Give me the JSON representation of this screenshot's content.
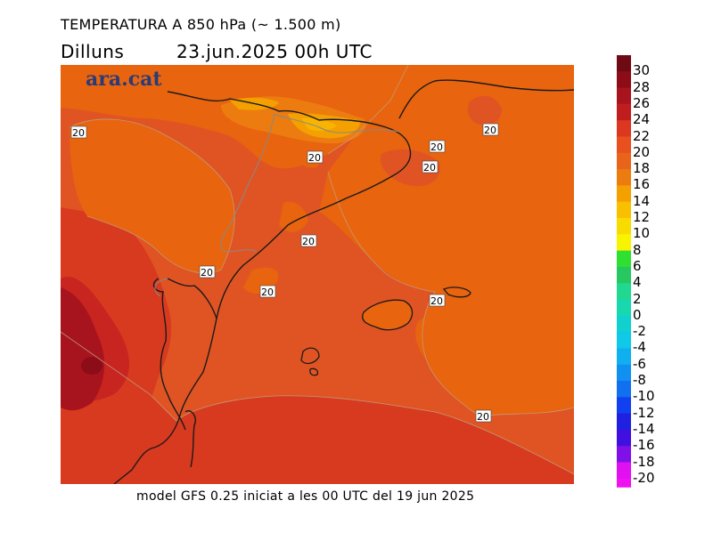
{
  "header": {
    "title": "TEMPERATURA A 850 hPa (~ 1.500 m)",
    "day": "Dilluns",
    "datetime": "23.jun.2025 00h UTC"
  },
  "logo": {
    "text": "ara.cat"
  },
  "footer": {
    "text": "model GFS 0.25 iniciat a les 00 UTC del 19 jun 2025"
  },
  "contour_labels": [
    "20",
    "20",
    "20",
    "20",
    "20",
    "20",
    "20",
    "20",
    "20",
    "20"
  ],
  "legend": {
    "labels": [
      "30",
      "28",
      "26",
      "24",
      "22",
      "20",
      "18",
      "16",
      "14",
      "12",
      "10",
      "8",
      "6",
      "4",
      "2",
      "0",
      "-2",
      "-4",
      "-6",
      "-8",
      "-10",
      "-12",
      "-14",
      "-16",
      "-18",
      "-20"
    ],
    "colors": [
      "#6e0a14",
      "#8c0c18",
      "#a8141e",
      "#c01e1e",
      "#dc3820",
      "#e8501e",
      "#e8641a",
      "#ec7c10",
      "#f4a000",
      "#f8c000",
      "#f8dc00",
      "#f8f400",
      "#30e030",
      "#28c860",
      "#20d890",
      "#18d8b0",
      "#10d0d0",
      "#10c8e8",
      "#10b0f0",
      "#1090f0",
      "#1070f0",
      "#1040f0",
      "#2020e0",
      "#4010e0",
      "#8010e8",
      "#e010f0"
    ],
    "bottom_color": "#f010f0"
  }
}
